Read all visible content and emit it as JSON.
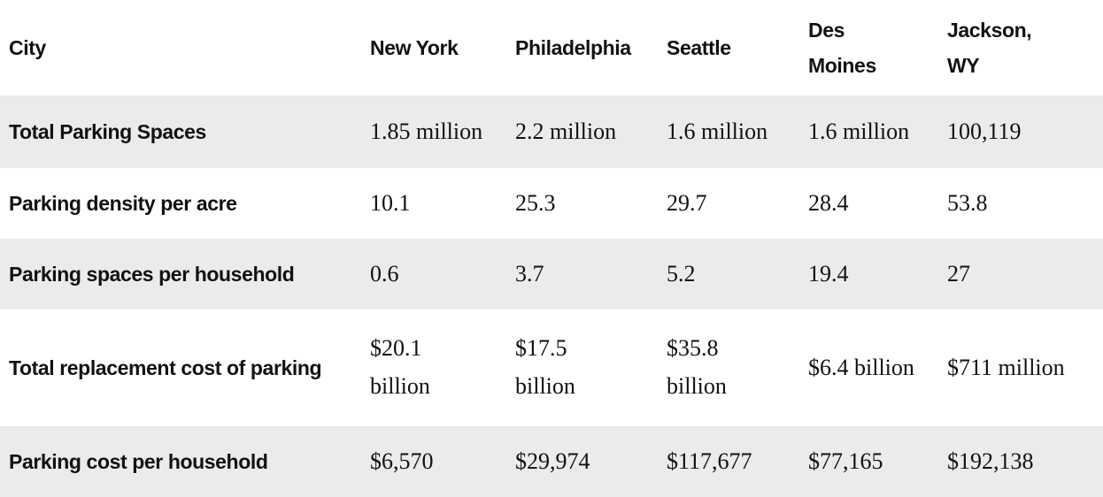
{
  "colors": {
    "stripe": "#ebebeb",
    "background": "#ffffff",
    "text_primary": "#111111"
  },
  "chart_data": {
    "type": "table",
    "title": "",
    "columns": [
      "City",
      "New York",
      "Philadelphia",
      "Seattle",
      "Des Moines",
      "Jackson, WY"
    ],
    "rows": [
      [
        "Total Parking Spaces",
        "1.85 million",
        "2.2 million",
        "1.6 million",
        "1.6 million",
        "100,119"
      ],
      [
        "Parking density per acre",
        "10.1",
        "25.3",
        "29.7",
        "28.4",
        "53.8"
      ],
      [
        "Parking spaces per household",
        "0.6",
        "3.7",
        "5.2",
        "19.4",
        "27"
      ],
      [
        "Total replacement cost of parking",
        "$20.1 billion",
        "$17.5 billion",
        "$35.8 billion",
        "$6.4 billion",
        "$711 million"
      ],
      [
        "Parking cost per household",
        "$6,570",
        "$29,974",
        "$117,677",
        "$77,165",
        "$192,138"
      ]
    ],
    "layout": {
      "striped_rows": [
        0,
        2,
        4
      ],
      "header_background": "#ffffff",
      "stripe_background": "#ebebeb",
      "grid": "none"
    }
  }
}
